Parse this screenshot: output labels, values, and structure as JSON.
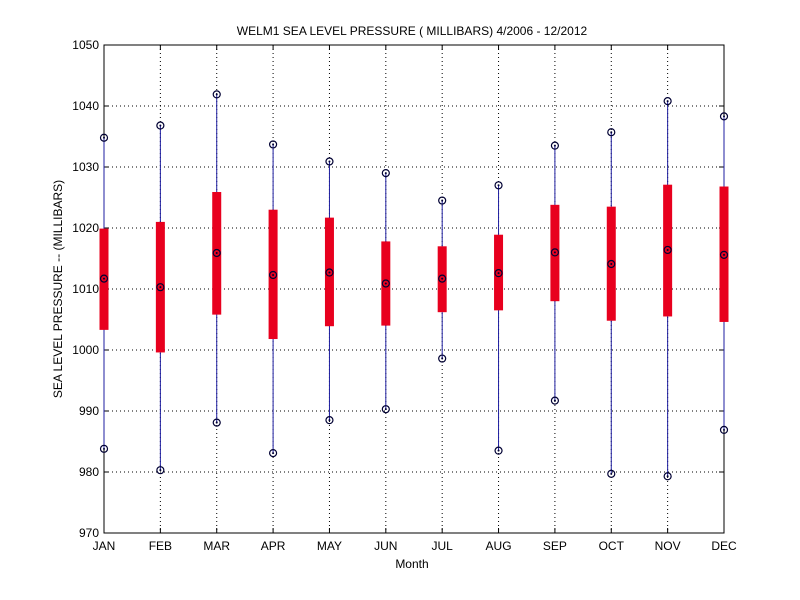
{
  "chart_data": {
    "type": "box",
    "title": "WELM1  SEA LEVEL PRESSURE ( MILLIBARS) 4/2006 - 12/2012",
    "xlabel": "Month",
    "ylabel": "SEA LEVEL PRESSURE -- (MILLIBARS)",
    "ylim": [
      970,
      1050
    ],
    "yticks": [
      970,
      980,
      990,
      1000,
      1010,
      1020,
      1030,
      1040,
      1050
    ],
    "grid": true,
    "categories": [
      "JAN",
      "FEB",
      "MAR",
      "APR",
      "MAY",
      "JUN",
      "JUL",
      "AUG",
      "SEP",
      "OCT",
      "NOV",
      "DEC"
    ],
    "min": [
      983.8,
      980.3,
      988.1,
      983.1,
      988.5,
      990.3,
      998.6,
      983.5,
      991.7,
      979.7,
      979.3,
      986.9
    ],
    "q1": [
      1003.3,
      999.6,
      1005.8,
      1001.8,
      1003.9,
      1004.0,
      1006.2,
      1006.5,
      1008.0,
      1004.8,
      1005.5,
      1004.6
    ],
    "median": [
      1011.7,
      1010.3,
      1015.9,
      1012.3,
      1012.7,
      1010.9,
      1011.7,
      1012.6,
      1016.0,
      1014.1,
      1016.4,
      1015.6
    ],
    "q3": [
      1019.9,
      1021.0,
      1025.9,
      1023.0,
      1021.7,
      1017.8,
      1017.0,
      1018.9,
      1023.8,
      1023.5,
      1027.1,
      1026.8
    ],
    "max": [
      1034.8,
      1036.8,
      1041.9,
      1033.7,
      1030.9,
      1029.0,
      1024.5,
      1027.0,
      1033.5,
      1035.7,
      1040.8,
      1038.3
    ],
    "colors": {
      "box": "#e8001e",
      "whisker": "#1e1ea0",
      "marker": "#000033",
      "grid": "#000000"
    }
  }
}
